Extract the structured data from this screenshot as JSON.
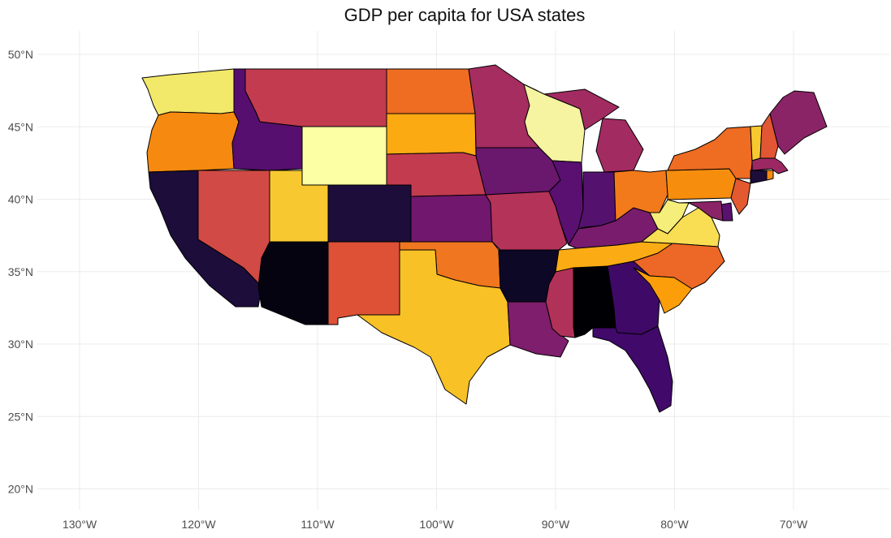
{
  "title": "GDP per capita for USA states",
  "axes": {
    "x_ticks": [
      {
        "value": -130,
        "label": "130°W"
      },
      {
        "value": -120,
        "label": "120°W"
      },
      {
        "value": -110,
        "label": "110°W"
      },
      {
        "value": -100,
        "label": "100°W"
      },
      {
        "value": -90,
        "label": "90°W"
      },
      {
        "value": -80,
        "label": "80°W"
      },
      {
        "value": -70,
        "label": "70°W"
      }
    ],
    "y_ticks": [
      {
        "value": 50,
        "label": "50°N"
      },
      {
        "value": 45,
        "label": "45°N"
      },
      {
        "value": 40,
        "label": "40°N"
      },
      {
        "value": 35,
        "label": "35°N"
      },
      {
        "value": 30,
        "label": "30°N"
      },
      {
        "value": 25,
        "label": "25°N"
      },
      {
        "value": 20,
        "label": "20°N"
      }
    ],
    "grid": true
  },
  "fill_colors": {
    "washington": "#f2e869",
    "oregon": "#f68a10",
    "california": "#1c0d3a",
    "nevada": "#d14a45",
    "idaho": "#560f6e",
    "montana": "#c33b4f",
    "wyoming": "#fcffa4",
    "utah": "#f8c831",
    "colorado": "#1c0d3a",
    "arizona": "#050310",
    "new_mexico": "#de5136",
    "north_dakota": "#ef6c23",
    "south_dakota": "#fbaa12",
    "nebraska": "#c33b4f",
    "kansas": "#71176d",
    "oklahoma": "#f0771f",
    "texas": "#f8c126",
    "minnesota": "#a52d60",
    "iowa": "#6a176e",
    "missouri": "#b43359",
    "arkansas": "#0d0826",
    "louisiana": "#7e1e6c",
    "wisconsin": "#f6f3a1",
    "illinois": "#591070",
    "michigan": "#a22b62",
    "indiana": "#54126e",
    "kentucky": "#791c6d",
    "tennessee": "#fbac14",
    "mississippi": "#b13259",
    "alabama": "#000004",
    "georgia": "#3f0a67",
    "florida": "#40096a",
    "ohio": "#f37a1b",
    "pennsylvania": "#f78d0d",
    "west_virginia": "#f6ee7a",
    "virginia": "#f9dd53",
    "north_carolina": "#ed6826",
    "south_carolina": "#fb9e0a",
    "new_york": "#ef6c23",
    "vermont": "#f8c831",
    "new_hampshire": "#e25634",
    "maine": "#8a2466",
    "massachusetts": "#9c2863",
    "connecticut": "#1c0d3a",
    "rhode_island": "#f68a10",
    "new_jersey": "#e35a31",
    "delaware": "#5a1170",
    "maryland": "#8a2466"
  }
}
